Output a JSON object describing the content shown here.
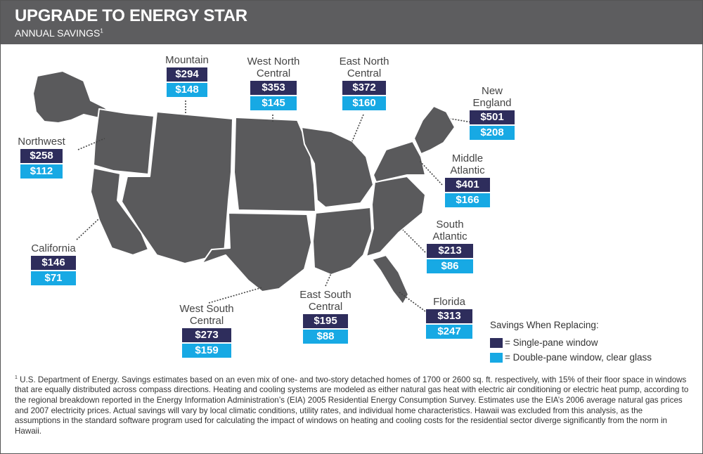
{
  "header": {
    "title": "UPGRADE TO ENERGY STAR",
    "subtitle": "ANNUAL SAVINGS",
    "subtitle_note": "1"
  },
  "colors": {
    "header_bg": "#5d5d5f",
    "map_fill": "#5a5a5c",
    "single_pane": "#2e2d5c",
    "double_pane": "#17a9e4"
  },
  "regions": [
    {
      "id": "mountain",
      "name_lines": [
        "Mountain"
      ],
      "single": "$294",
      "double": "$148"
    },
    {
      "id": "west-north-central",
      "name_lines": [
        "West North",
        "Central"
      ],
      "single": "$353",
      "double": "$145"
    },
    {
      "id": "east-north-central",
      "name_lines": [
        "East North",
        "Central"
      ],
      "single": "$372",
      "double": "$160"
    },
    {
      "id": "new-england",
      "name_lines": [
        "New",
        "England"
      ],
      "single": "$501",
      "double": "$208"
    },
    {
      "id": "northwest",
      "name_lines": [
        "Northwest"
      ],
      "single": "$258",
      "double": "$112"
    },
    {
      "id": "middle-atlantic",
      "name_lines": [
        "Middle",
        "Atlantic"
      ],
      "single": "$401",
      "double": "$166"
    },
    {
      "id": "california",
      "name_lines": [
        "California"
      ],
      "single": "$146",
      "double": "$71"
    },
    {
      "id": "south-atlantic",
      "name_lines": [
        "South",
        "Atlantic"
      ],
      "single": "$213",
      "double": "$86"
    },
    {
      "id": "florida",
      "name_lines": [
        "Florida"
      ],
      "single": "$313",
      "double": "$247"
    },
    {
      "id": "east-south-central",
      "name_lines": [
        "East South",
        "Central"
      ],
      "single": "$195",
      "double": "$88"
    },
    {
      "id": "west-south-central",
      "name_lines": [
        "West South",
        "Central"
      ],
      "single": "$273",
      "double": "$159"
    }
  ],
  "legend": {
    "title": "Savings When Replacing:",
    "single_label": "= Single-pane window",
    "double_label": "= Double-pane window, clear glass"
  },
  "footnote": {
    "marker": "1",
    "text": "U.S. Department of Energy. Savings estimates based on an even mix of one- and two-story detached homes of 1700 or 2600 sq. ft. respectively, with 15% of their floor space in windows that are equally distributed across compass directions. Heating and cooling systems are modeled as either natural gas heat with electric air conditioning or electric heat pump, according to the regional breakdown reported in the Energy Information Administration’s (EIA) 2005 Residential Energy Consumption Survey. Estimates use the EIA’s 2006 average natural gas prices and 2007 electricity prices. Actual savings will vary by local climatic conditions, utility rates, and individual home characteristics. Hawaii was excluded from this analysis, as the assumptions in the standard software program used for calculating the impact of windows on heating and cooling costs for the residential sector diverge significantly from the norm in Hawaii."
  }
}
